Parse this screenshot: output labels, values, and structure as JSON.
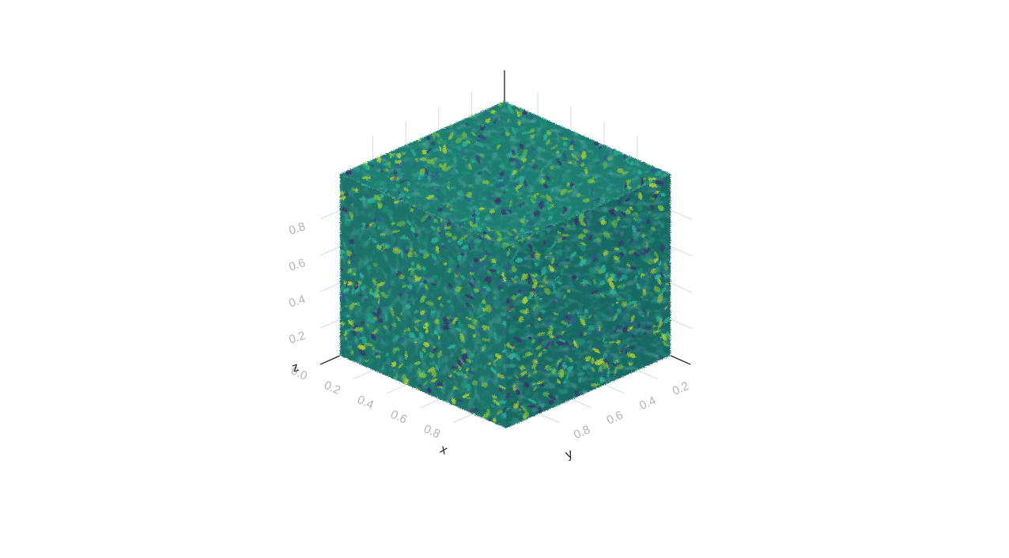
{
  "chart_data": {
    "type": "volume",
    "title": "",
    "axes": {
      "x": {
        "title": "x",
        "ticks": [
          "0.0",
          "0.2",
          "0.4",
          "0.6",
          "0.8"
        ],
        "range": [
          0,
          1
        ]
      },
      "y": {
        "title": "y",
        "ticks": [
          "0.2",
          "0.4",
          "0.6",
          "0.8"
        ],
        "range": [
          0,
          1
        ]
      },
      "z": {
        "title": "z",
        "ticks": [
          "0.2",
          "0.4",
          "0.6",
          "0.8"
        ],
        "range": [
          0,
          1
        ]
      }
    },
    "colorscale": [
      "#3b2f6b",
      "#2c5f8a",
      "#1f7a7a",
      "#1a8f6f",
      "#2fb89a",
      "#7cc242",
      "#b5d334"
    ],
    "face_colors": {
      "top": "#1e7d70",
      "left": "#1b7268",
      "right": "#196a63"
    },
    "grid": true,
    "legend": "none"
  }
}
